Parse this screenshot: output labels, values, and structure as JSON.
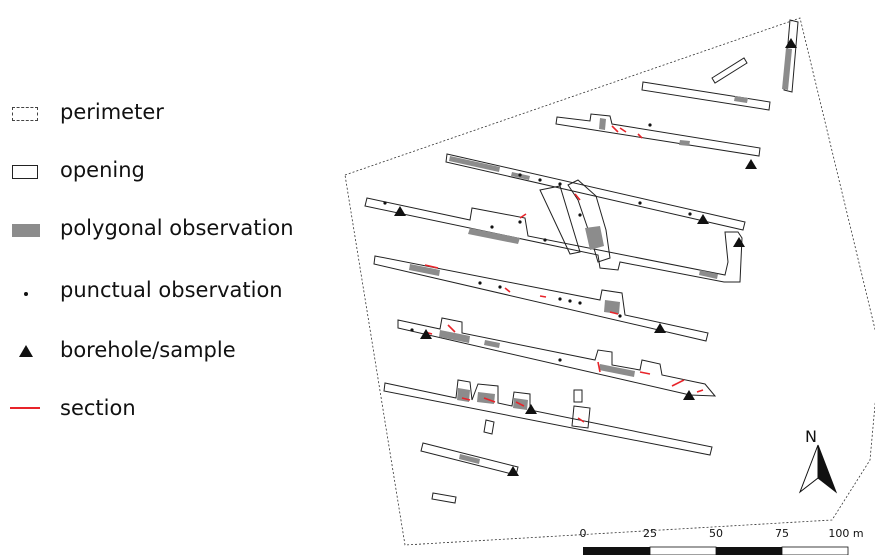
{
  "legend": {
    "items": [
      {
        "key": "perimeter",
        "label": "perimeter",
        "symbol": "dashed-rect-icon"
      },
      {
        "key": "opening",
        "label": "opening",
        "symbol": "outline-rect-icon"
      },
      {
        "key": "polygonal",
        "label": "polygonal observation",
        "symbol": "grey-fill-rect-icon"
      },
      {
        "key": "punctual",
        "label": "punctual observation",
        "symbol": "dot-icon"
      },
      {
        "key": "borehole",
        "label": "borehole/sample",
        "symbol": "triangle-icon"
      },
      {
        "key": "section",
        "label": "section",
        "symbol": "red-line-icon"
      }
    ]
  },
  "colors": {
    "polygonal_fill": "#8c8c8c",
    "section": "#e8242a",
    "outline": "#222222",
    "background": "#ffffff"
  },
  "north_arrow": {
    "label": "N"
  },
  "scale_bar": {
    "ticks": [
      "0",
      "25",
      "50",
      "75",
      "100 m"
    ]
  }
}
